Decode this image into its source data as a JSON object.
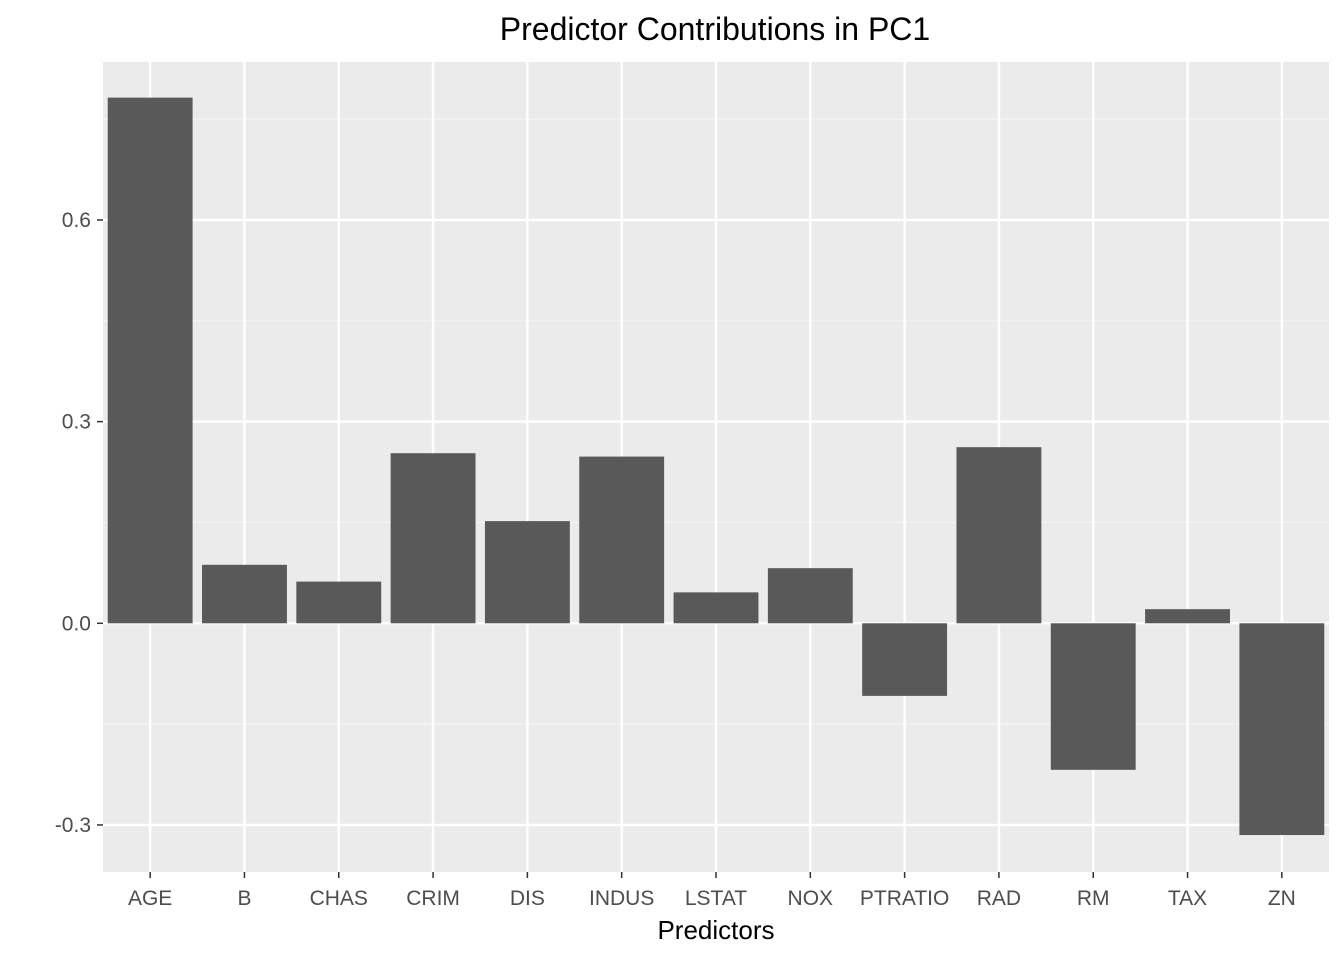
{
  "chart_data": {
    "type": "bar",
    "title": "Predictor Contributions in PC1",
    "xlabel": "Predictors",
    "ylabel": "",
    "categories": [
      "AGE",
      "B",
      "CHAS",
      "CRIM",
      "DIS",
      "INDUS",
      "LSTAT",
      "NOX",
      "PTRATIO",
      "RAD",
      "RM",
      "TAX",
      "ZN"
    ],
    "values": [
      0.782,
      0.087,
      0.062,
      0.253,
      0.152,
      0.248,
      0.046,
      0.082,
      -0.108,
      0.262,
      -0.218,
      0.021,
      -0.315
    ],
    "ylim": [
      -0.37,
      0.835
    ],
    "yticks": [
      -0.3,
      0.0,
      0.3,
      0.6
    ],
    "ytick_labels": [
      "-0.3",
      "0.0",
      "0.3",
      "0.6"
    ],
    "grid": true,
    "legend": "none",
    "colors": {
      "bar": "#595959",
      "panel": "#ebebeb",
      "grid_major": "#ffffff",
      "grid_minor": "#f5f5f5",
      "tick_text": "#4d4d4d",
      "tick_mark": "#333333"
    }
  }
}
